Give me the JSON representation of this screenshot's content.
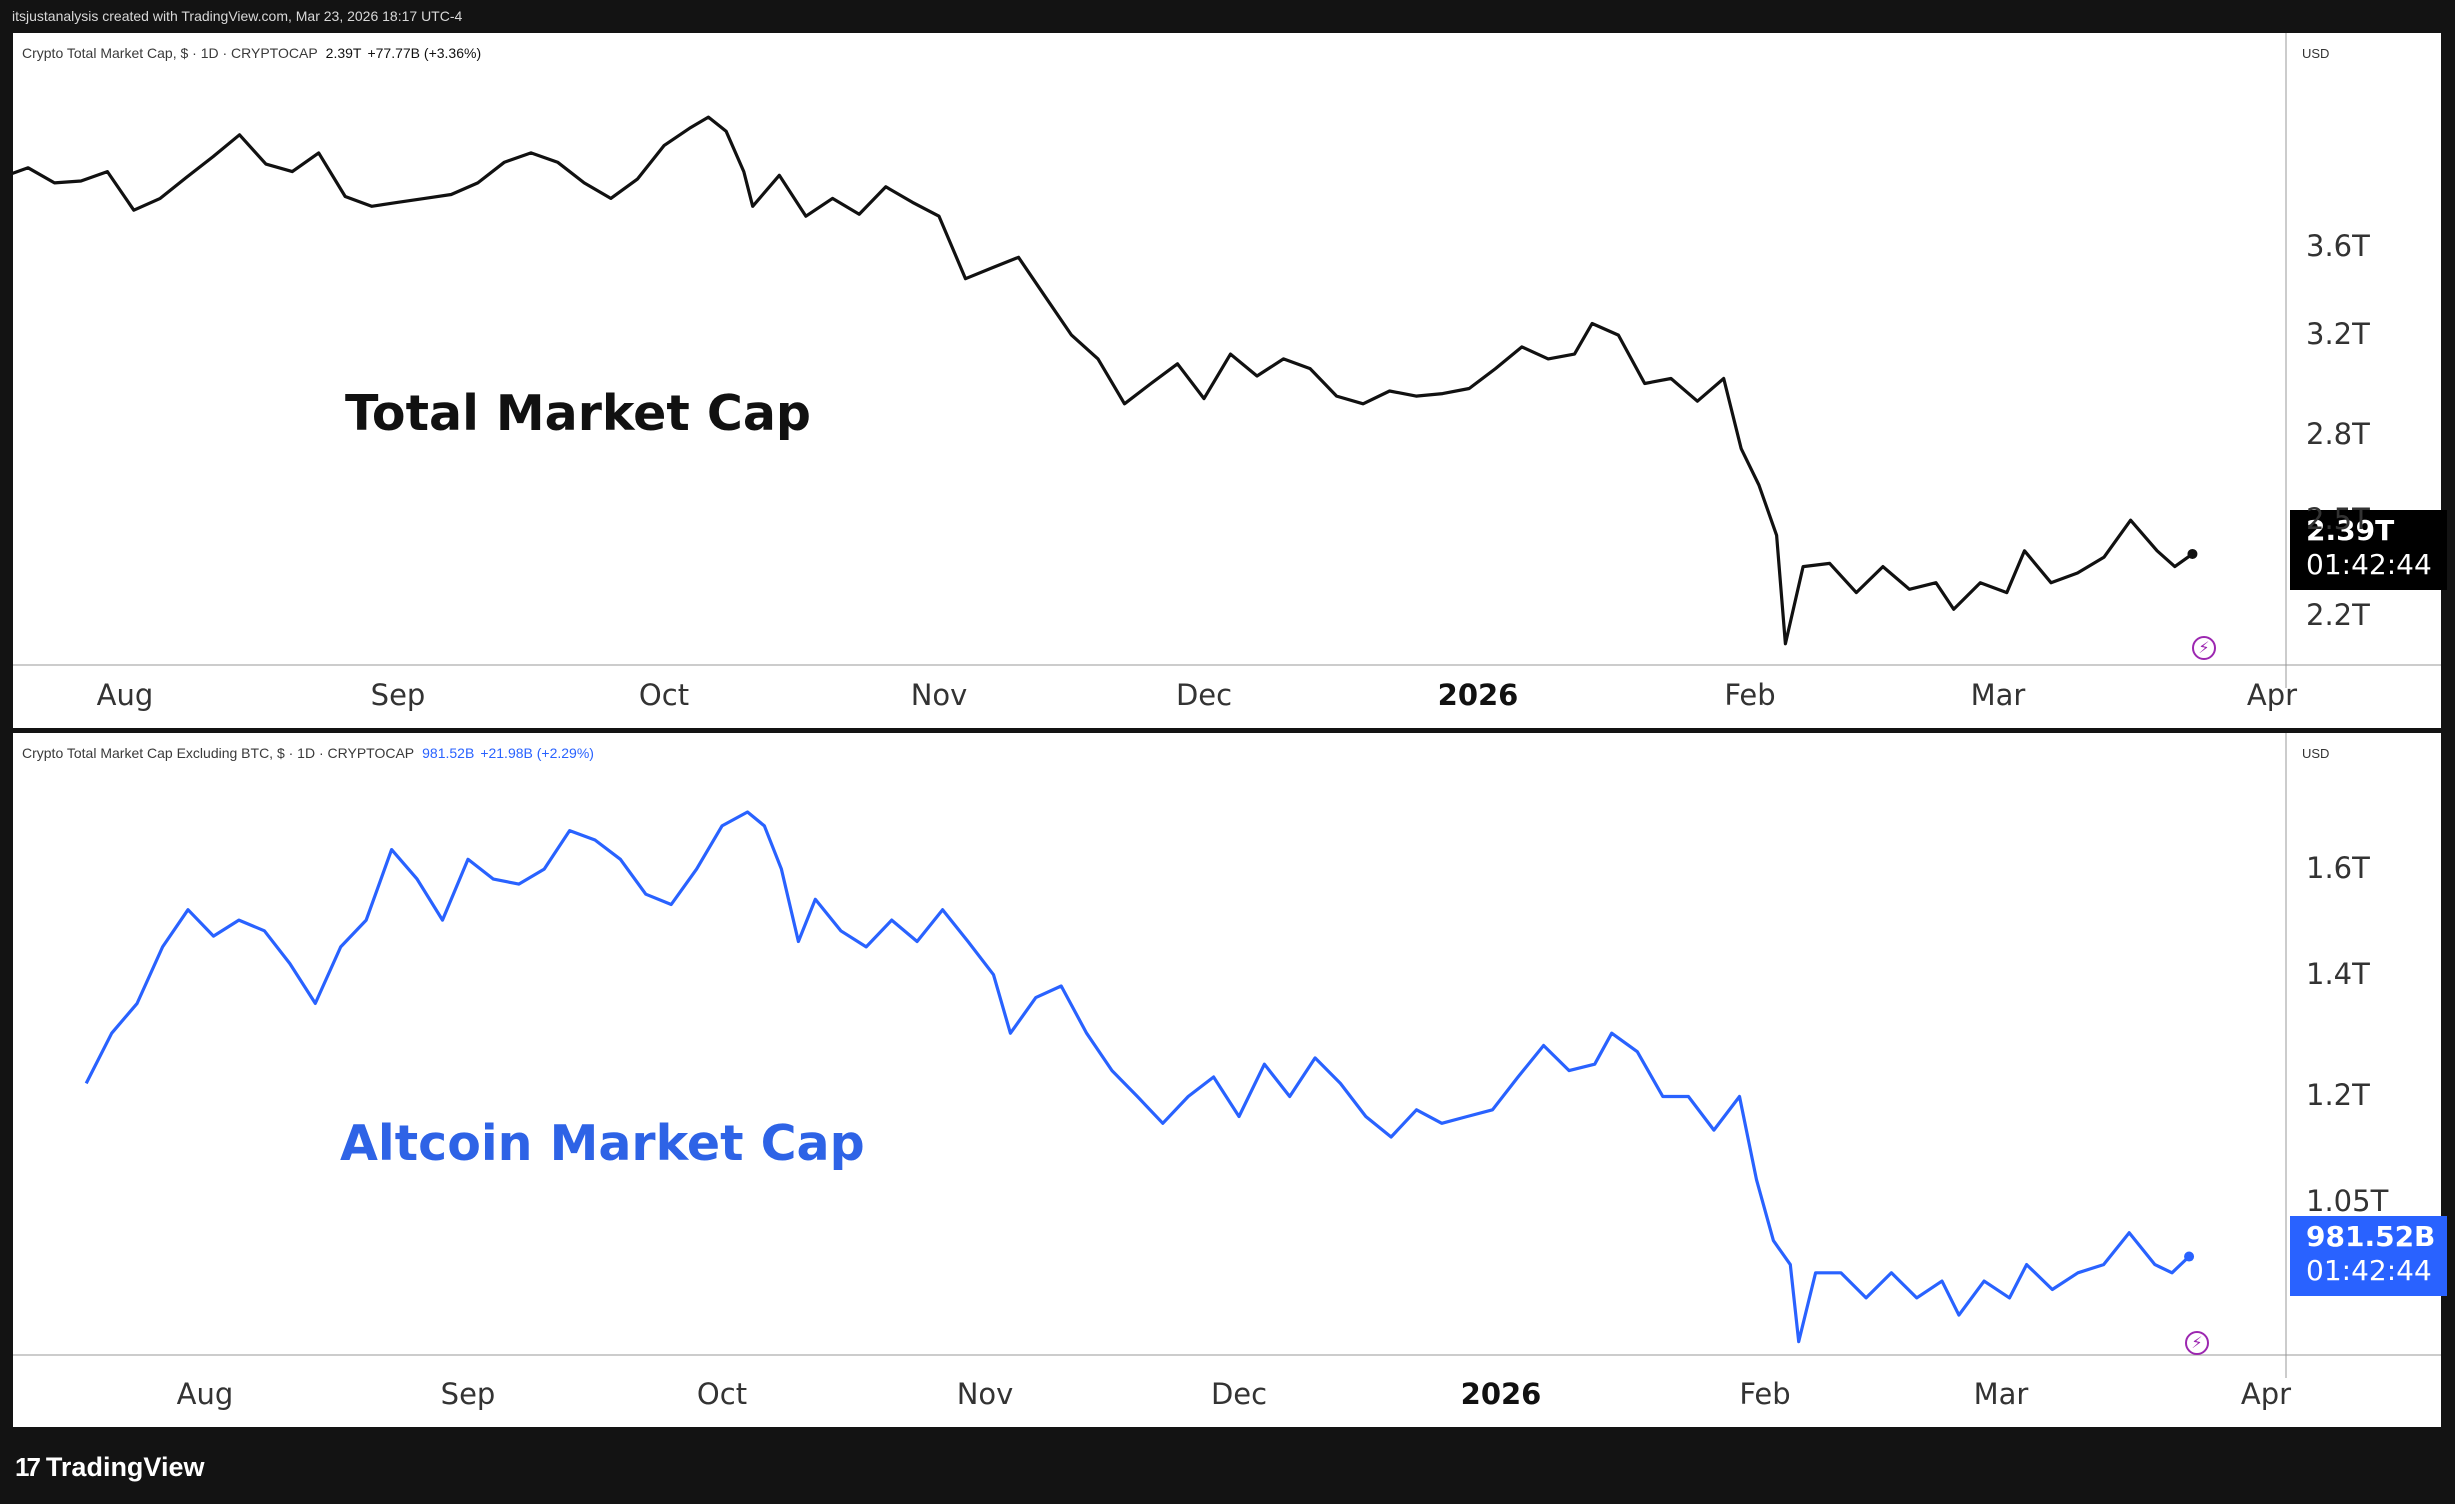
{
  "header": {
    "text": "itsjustanalysis created with TradingView.com, Mar 23, 2026 18:17 UTC-4"
  },
  "footer": {
    "logo_text": "TradingView",
    "logo_icon": "tradingview-logo-icon"
  },
  "colors": {
    "line1": "#111111",
    "line2": "#2962ff",
    "label2": "#2e63e6",
    "tag1": "#000000",
    "tag2": "#2962ff",
    "bolt": "#9c27b0"
  },
  "pane1": {
    "legend": {
      "name": "Crypto Total Market Cap, $ · 1D · CRYPTOCAP",
      "value": "2.39T",
      "change": "+77.77B (+3.36%)"
    },
    "currency": "USD",
    "big_label": "Total Market Cap",
    "price_tag": {
      "value": "2.39T",
      "countdown": "01:42:44"
    },
    "icon": "lightning-icon"
  },
  "pane2": {
    "legend": {
      "name": "Crypto Total Market Cap Excluding BTC, $ · 1D · CRYPTOCAP",
      "value": "981.52B",
      "change": "+21.98B (+2.29%)"
    },
    "currency": "USD",
    "big_label": "Altcoin Market Cap",
    "price_tag": {
      "value": "981.52B",
      "countdown": "01:42:44"
    },
    "icon": "lightning-icon"
  },
  "chart_data": [
    {
      "type": "line",
      "title": "Crypto Total Market Cap, $ · 1D · CRYPTOCAP",
      "scale": "log",
      "ylim": [
        2.05,
        4.6
      ],
      "xlim": [
        "2025-07-18",
        "2026-04-06"
      ],
      "y_ticks": [
        {
          "value": 3.6,
          "label": "3.6T"
        },
        {
          "value": 3.2,
          "label": "3.2T"
        },
        {
          "value": 2.8,
          "label": "2.8T"
        },
        {
          "value": 2.5,
          "label": "2.5T"
        },
        {
          "value": 2.2,
          "label": "2.2T"
        }
      ],
      "x_ticks": [
        {
          "date": "2025-08-01",
          "label": "Aug"
        },
        {
          "date": "2025-09-01",
          "label": "Sep"
        },
        {
          "date": "2025-10-01",
          "label": "Oct"
        },
        {
          "date": "2025-11-01",
          "label": "Nov"
        },
        {
          "date": "2025-12-01",
          "label": "Dec"
        },
        {
          "date": "2026-01-01",
          "label": "2026",
          "bold": true
        },
        {
          "date": "2026-02-01",
          "label": "Feb"
        },
        {
          "date": "2026-03-01",
          "label": "Mar"
        },
        {
          "date": "2026-04-01",
          "label": "Apr"
        }
      ],
      "series": [
        {
          "points": [
            [
              "2025-07-18",
              3.95
            ],
            [
              "2025-07-21",
              4.0
            ],
            [
              "2025-07-24",
              3.92
            ],
            [
              "2025-07-27",
              3.93
            ],
            [
              "2025-07-30",
              3.98
            ],
            [
              "2025-08-02",
              3.78
            ],
            [
              "2025-08-05",
              3.84
            ],
            [
              "2025-08-08",
              3.95
            ],
            [
              "2025-08-11",
              4.06
            ],
            [
              "2025-08-14",
              4.18
            ],
            [
              "2025-08-17",
              4.02
            ],
            [
              "2025-08-20",
              3.98
            ],
            [
              "2025-08-23",
              4.08
            ],
            [
              "2025-08-26",
              3.85
            ],
            [
              "2025-08-29",
              3.8
            ],
            [
              "2025-09-01",
              3.82
            ],
            [
              "2025-09-04",
              3.84
            ],
            [
              "2025-09-07",
              3.86
            ],
            [
              "2025-09-10",
              3.92
            ],
            [
              "2025-09-13",
              4.03
            ],
            [
              "2025-09-16",
              4.08
            ],
            [
              "2025-09-19",
              4.03
            ],
            [
              "2025-09-22",
              3.92
            ],
            [
              "2025-09-25",
              3.84
            ],
            [
              "2025-09-28",
              3.94
            ],
            [
              "2025-10-01",
              4.12
            ],
            [
              "2025-10-04",
              4.22
            ],
            [
              "2025-10-06",
              4.28
            ],
            [
              "2025-10-08",
              4.2
            ],
            [
              "2025-10-10",
              3.98
            ],
            [
              "2025-10-11",
              3.8
            ],
            [
              "2025-10-14",
              3.96
            ],
            [
              "2025-10-17",
              3.75
            ],
            [
              "2025-10-20",
              3.84
            ],
            [
              "2025-10-23",
              3.76
            ],
            [
              "2025-10-26",
              3.9
            ],
            [
              "2025-10-29",
              3.82
            ],
            [
              "2025-11-01",
              3.75
            ],
            [
              "2025-11-04",
              3.45
            ],
            [
              "2025-11-07",
              3.5
            ],
            [
              "2025-11-10",
              3.55
            ],
            [
              "2025-11-13",
              3.37
            ],
            [
              "2025-11-16",
              3.2
            ],
            [
              "2025-11-19",
              3.1
            ],
            [
              "2025-11-22",
              2.92
            ],
            [
              "2025-11-25",
              3.0
            ],
            [
              "2025-11-28",
              3.08
            ],
            [
              "2025-12-01",
              2.94
            ],
            [
              "2025-12-04",
              3.12
            ],
            [
              "2025-12-07",
              3.03
            ],
            [
              "2025-12-10",
              3.1
            ],
            [
              "2025-12-13",
              3.06
            ],
            [
              "2025-12-16",
              2.95
            ],
            [
              "2025-12-19",
              2.92
            ],
            [
              "2025-12-22",
              2.97
            ],
            [
              "2025-12-25",
              2.95
            ],
            [
              "2025-12-28",
              2.96
            ],
            [
              "2025-12-31",
              2.98
            ],
            [
              "2026-01-03",
              3.06
            ],
            [
              "2026-01-06",
              3.15
            ],
            [
              "2026-01-09",
              3.1
            ],
            [
              "2026-01-12",
              3.12
            ],
            [
              "2026-01-14",
              3.25
            ],
            [
              "2026-01-17",
              3.2
            ],
            [
              "2026-01-20",
              3.0
            ],
            [
              "2026-01-23",
              3.02
            ],
            [
              "2026-01-26",
              2.93
            ],
            [
              "2026-01-29",
              3.02
            ],
            [
              "2026-01-31",
              2.75
            ],
            [
              "2026-02-02",
              2.62
            ],
            [
              "2026-02-04",
              2.45
            ],
            [
              "2026-02-05",
              2.12
            ],
            [
              "2026-02-07",
              2.35
            ],
            [
              "2026-02-10",
              2.36
            ],
            [
              "2026-02-13",
              2.27
            ],
            [
              "2026-02-16",
              2.35
            ],
            [
              "2026-02-19",
              2.28
            ],
            [
              "2026-02-22",
              2.3
            ],
            [
              "2026-02-24",
              2.22
            ],
            [
              "2026-02-27",
              2.3
            ],
            [
              "2026-03-02",
              2.27
            ],
            [
              "2026-03-04",
              2.4
            ],
            [
              "2026-03-07",
              2.3
            ],
            [
              "2026-03-10",
              2.33
            ],
            [
              "2026-03-13",
              2.38
            ],
            [
              "2026-03-16",
              2.5
            ],
            [
              "2026-03-19",
              2.4
            ],
            [
              "2026-03-21",
              2.35
            ],
            [
              "2026-03-23",
              2.39
            ]
          ]
        }
      ]
    },
    {
      "type": "line",
      "title": "Crypto Total Market Cap Excluding BTC, $ · 1D · CRYPTOCAP",
      "scale": "log",
      "ylim": [
        0.85,
        1.83
      ],
      "xlim": [
        "2025-07-18",
        "2026-04-06"
      ],
      "y_ticks": [
        {
          "value": 1.6,
          "label": "1.6T"
        },
        {
          "value": 1.4,
          "label": "1.4T"
        },
        {
          "value": 1.2,
          "label": "1.2T"
        },
        {
          "value": 1.05,
          "label": "1.05T"
        }
      ],
      "x_ticks": [
        {
          "date": "2025-08-01",
          "label": "Aug"
        },
        {
          "date": "2025-09-01",
          "label": "Sep"
        },
        {
          "date": "2025-10-01",
          "label": "Oct"
        },
        {
          "date": "2025-11-01",
          "label": "Nov"
        },
        {
          "date": "2025-12-01",
          "label": "Dec"
        },
        {
          "date": "2026-01-01",
          "label": "2026",
          "bold": true
        },
        {
          "date": "2026-02-01",
          "label": "Feb"
        },
        {
          "date": "2026-03-01",
          "label": "Mar"
        },
        {
          "date": "2026-04-01",
          "label": "Apr"
        }
      ],
      "series": [
        {
          "points": [
            [
              "2025-07-18",
              1.22
            ],
            [
              "2025-07-21",
              1.3
            ],
            [
              "2025-07-24",
              1.35
            ],
            [
              "2025-07-27",
              1.45
            ],
            [
              "2025-07-30",
              1.52
            ],
            [
              "2025-08-02",
              1.47
            ],
            [
              "2025-08-05",
              1.5
            ],
            [
              "2025-08-08",
              1.48
            ],
            [
              "2025-08-11",
              1.42
            ],
            [
              "2025-08-14",
              1.35
            ],
            [
              "2025-08-17",
              1.45
            ],
            [
              "2025-08-20",
              1.5
            ],
            [
              "2025-08-23",
              1.64
            ],
            [
              "2025-08-26",
              1.58
            ],
            [
              "2025-08-29",
              1.5
            ],
            [
              "2025-09-01",
              1.62
            ],
            [
              "2025-09-04",
              1.58
            ],
            [
              "2025-09-07",
              1.57
            ],
            [
              "2025-09-10",
              1.6
            ],
            [
              "2025-09-13",
              1.68
            ],
            [
              "2025-09-16",
              1.66
            ],
            [
              "2025-09-19",
              1.62
            ],
            [
              "2025-09-22",
              1.55
            ],
            [
              "2025-09-25",
              1.53
            ],
            [
              "2025-09-28",
              1.6
            ],
            [
              "2025-10-01",
              1.69
            ],
            [
              "2025-10-04",
              1.72
            ],
            [
              "2025-10-06",
              1.69
            ],
            [
              "2025-10-08",
              1.6
            ],
            [
              "2025-10-10",
              1.46
            ],
            [
              "2025-10-12",
              1.54
            ],
            [
              "2025-10-15",
              1.48
            ],
            [
              "2025-10-18",
              1.45
            ],
            [
              "2025-10-21",
              1.5
            ],
            [
              "2025-10-24",
              1.46
            ],
            [
              "2025-10-27",
              1.52
            ],
            [
              "2025-10-30",
              1.46
            ],
            [
              "2025-11-02",
              1.4
            ],
            [
              "2025-11-04",
              1.3
            ],
            [
              "2025-11-07",
              1.36
            ],
            [
              "2025-11-10",
              1.38
            ],
            [
              "2025-11-13",
              1.3
            ],
            [
              "2025-11-16",
              1.24
            ],
            [
              "2025-11-19",
              1.2
            ],
            [
              "2025-11-22",
              1.16
            ],
            [
              "2025-11-25",
              1.2
            ],
            [
              "2025-11-28",
              1.23
            ],
            [
              "2025-12-01",
              1.17
            ],
            [
              "2025-12-04",
              1.25
            ],
            [
              "2025-12-07",
              1.2
            ],
            [
              "2025-12-10",
              1.26
            ],
            [
              "2025-12-13",
              1.22
            ],
            [
              "2025-12-16",
              1.17
            ],
            [
              "2025-12-19",
              1.14
            ],
            [
              "2025-12-22",
              1.18
            ],
            [
              "2025-12-25",
              1.16
            ],
            [
              "2025-12-28",
              1.17
            ],
            [
              "2025-12-31",
              1.18
            ],
            [
              "2026-01-03",
              1.23
            ],
            [
              "2026-01-06",
              1.28
            ],
            [
              "2026-01-09",
              1.24
            ],
            [
              "2026-01-12",
              1.25
            ],
            [
              "2026-01-14",
              1.3
            ],
            [
              "2026-01-17",
              1.27
            ],
            [
              "2026-01-20",
              1.2
            ],
            [
              "2026-01-23",
              1.2
            ],
            [
              "2026-01-26",
              1.15
            ],
            [
              "2026-01-29",
              1.2
            ],
            [
              "2026-01-31",
              1.08
            ],
            [
              "2026-02-02",
              1.0
            ],
            [
              "2026-02-04",
              0.97
            ],
            [
              "2026-02-05",
              0.88
            ],
            [
              "2026-02-07",
              0.96
            ],
            [
              "2026-02-10",
              0.96
            ],
            [
              "2026-02-13",
              0.93
            ],
            [
              "2026-02-16",
              0.96
            ],
            [
              "2026-02-19",
              0.93
            ],
            [
              "2026-02-22",
              0.95
            ],
            [
              "2026-02-24",
              0.91
            ],
            [
              "2026-02-27",
              0.95
            ],
            [
              "2026-03-02",
              0.93
            ],
            [
              "2026-03-04",
              0.97
            ],
            [
              "2026-03-07",
              0.94
            ],
            [
              "2026-03-10",
              0.96
            ],
            [
              "2026-03-13",
              0.97
            ],
            [
              "2026-03-16",
              1.01
            ],
            [
              "2026-03-19",
              0.97
            ],
            [
              "2026-03-21",
              0.96
            ],
            [
              "2026-03-23",
              0.98
            ]
          ]
        }
      ]
    }
  ]
}
